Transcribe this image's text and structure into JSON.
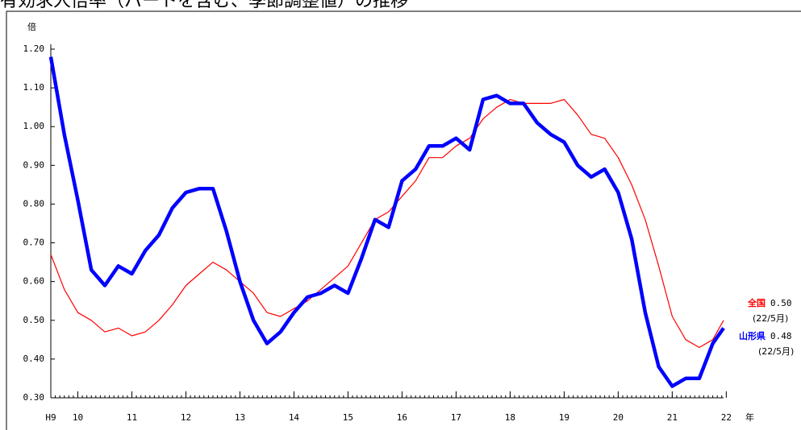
{
  "chart_data": {
    "type": "line",
    "title": "有効求人倍率（パートを含む、季節調整値）の推移",
    "y_unit": "倍",
    "x_unit": "年",
    "x": [
      9.5,
      9.75,
      10,
      10.25,
      10.5,
      10.75,
      11,
      11.25,
      11.5,
      11.75,
      12,
      12.25,
      12.5,
      12.75,
      13,
      13.25,
      13.5,
      13.75,
      14,
      14.25,
      14.5,
      14.75,
      15,
      15.25,
      15.5,
      15.75,
      16,
      16.25,
      16.5,
      16.75,
      17,
      17.25,
      17.5,
      17.75,
      18,
      18.25,
      18.5,
      18.75,
      19,
      19.25,
      19.5,
      19.75,
      20,
      20.25,
      20.5,
      20.75,
      21,
      21.25,
      21.5,
      21.75,
      21.95
    ],
    "series": [
      {
        "name": "全国",
        "color": "#ff0000",
        "width": 1.2,
        "end_value_label": "0.50",
        "end_date": "(22/5月)",
        "values": [
          0.67,
          0.58,
          0.52,
          0.5,
          0.47,
          0.48,
          0.46,
          0.47,
          0.5,
          0.54,
          0.59,
          0.62,
          0.65,
          0.63,
          0.6,
          0.57,
          0.52,
          0.51,
          0.53,
          0.55,
          0.58,
          0.61,
          0.64,
          0.7,
          0.76,
          0.78,
          0.82,
          0.86,
          0.92,
          0.92,
          0.95,
          0.97,
          1.02,
          1.05,
          1.07,
          1.06,
          1.06,
          1.06,
          1.07,
          1.03,
          0.98,
          0.97,
          0.92,
          0.85,
          0.76,
          0.64,
          0.51,
          0.45,
          0.43,
          0.45,
          0.5
        ]
      },
      {
        "name": "山形県",
        "color": "#0000ff",
        "width": 4.5,
        "end_value_label": "0.48",
        "end_date": "(22/5月)",
        "values": [
          1.18,
          0.98,
          0.81,
          0.63,
          0.59,
          0.64,
          0.62,
          0.68,
          0.72,
          0.79,
          0.83,
          0.84,
          0.84,
          0.73,
          0.6,
          0.5,
          0.44,
          0.47,
          0.52,
          0.56,
          0.57,
          0.59,
          0.57,
          0.66,
          0.76,
          0.74,
          0.86,
          0.89,
          0.95,
          0.95,
          0.97,
          0.94,
          1.07,
          1.08,
          1.06,
          1.06,
          1.01,
          0.98,
          0.96,
          0.9,
          0.87,
          0.89,
          0.83,
          0.71,
          0.52,
          0.38,
          0.33,
          0.35,
          0.35,
          0.44,
          0.48
        ]
      }
    ],
    "xlim": [
      9.5,
      21.95
    ],
    "xticks": [
      {
        "value": 9.5,
        "label": "H9"
      },
      10,
      11,
      12,
      13,
      14,
      15,
      16,
      17,
      18,
      19,
      20,
      21,
      22
    ],
    "ylim": [
      0.3,
      1.2
    ],
    "yticks": [
      {
        "value": 0.3,
        "label": "0.30"
      },
      {
        "value": 0.4,
        "label": "0.40"
      },
      {
        "value": 0.5,
        "label": "0.50"
      },
      {
        "value": 0.6,
        "label": "0.60"
      },
      {
        "value": 0.7,
        "label": "0.70"
      },
      {
        "value": 0.8,
        "label": "0.80"
      },
      {
        "value": 0.9,
        "label": "0.90"
      },
      {
        "value": 1.0,
        "label": "1.00"
      },
      {
        "value": 1.1,
        "label": "1.10"
      },
      {
        "value": 1.2,
        "label": "1.20"
      }
    ],
    "grid": false
  }
}
